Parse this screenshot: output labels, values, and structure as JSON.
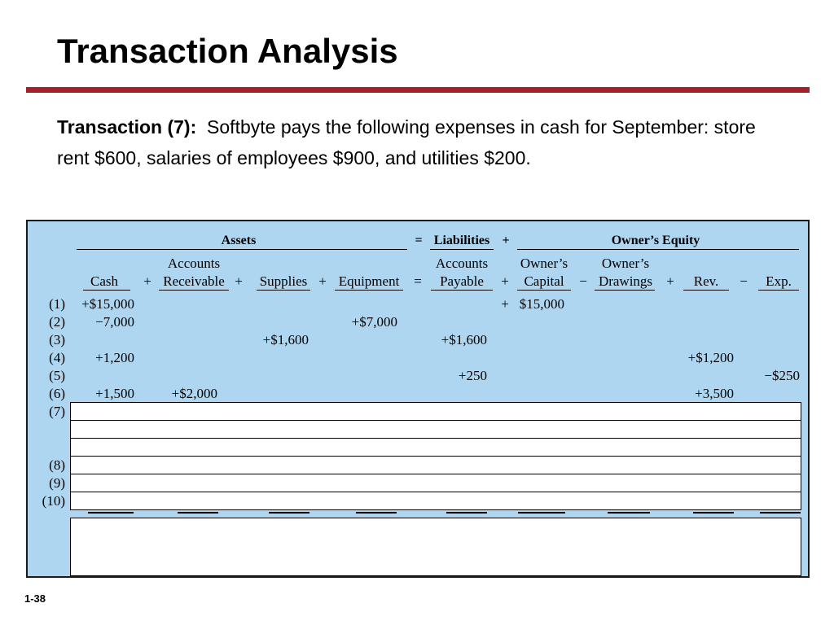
{
  "slide": {
    "title": "Transaction Analysis",
    "desc_label": "Transaction (7):",
    "desc_text": "Softbyte pays the following expenses in cash for September: store rent $600, salaries of employees $900, and utilities $200.",
    "page_number": "1-38"
  },
  "table": {
    "group_headers": {
      "assets": "Assets",
      "eq": "=",
      "liabilities": "Liabilities",
      "plus": "+",
      "equity": "Owner’s Equity"
    },
    "column_headers": {
      "cash": "Cash",
      "ar_top": "Accounts",
      "ar_bottom": "Receivable",
      "supplies": "Supplies",
      "equipment": "Equipment",
      "ap_top": "Accounts",
      "ap_bottom": "Payable",
      "capital_top": "Owner’s",
      "capital_bottom": "Capital",
      "drawings_top": "Owner’s",
      "drawings_bottom": "Drawings",
      "rev": "Rev.",
      "exp": "Exp."
    },
    "column_operators": {
      "op1": "+",
      "op2": "+",
      "op3": "+",
      "op4": "=",
      "op5": "+",
      "op6": "−",
      "op7": "+",
      "op8": "−"
    },
    "row_labels": [
      "(1)",
      "(2)",
      "(3)",
      "(4)",
      "(5)",
      "(6)",
      "(7)",
      "(8)",
      "(9)",
      "(10)"
    ],
    "rows": {
      "r1": {
        "cash": "+$15,000",
        "plus": "+",
        "capital": "$15,000"
      },
      "r2": {
        "cash": "−7,000",
        "equipment": "+$7,000"
      },
      "r3": {
        "supplies": "+$1,600",
        "ap": "+$1,600"
      },
      "r4": {
        "cash": "+1,200",
        "rev": "+$1,200"
      },
      "r5": {
        "ap": "+250",
        "exp": "−$250"
      },
      "r6": {
        "cash": "+1,500",
        "ar": "+$2,000",
        "rev": "+3,500"
      }
    }
  }
}
